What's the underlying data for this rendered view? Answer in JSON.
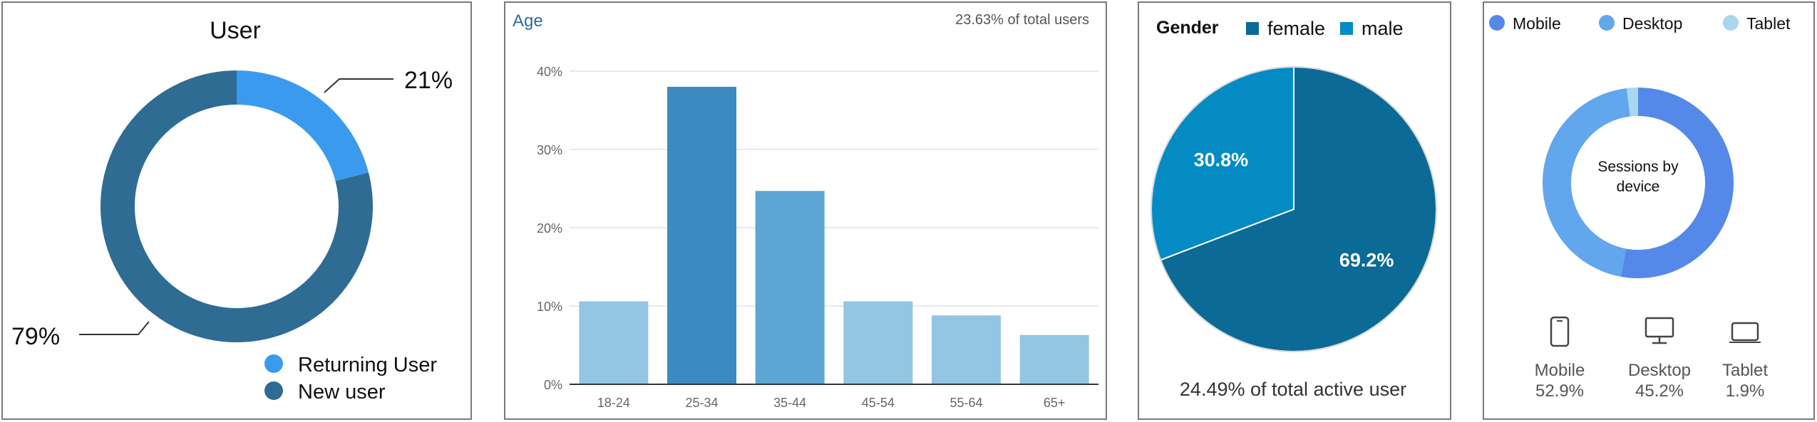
{
  "chart_data": [
    {
      "type": "pie",
      "variant": "donut",
      "title": "User",
      "slices": [
        {
          "label": "Returning  User",
          "value": 21,
          "display": "21%",
          "color": "#3a9bee"
        },
        {
          "label": "New user",
          "value": 79,
          "display": "79%",
          "color": "#2e6c94"
        }
      ],
      "legend_position": "bottom-right"
    },
    {
      "type": "bar",
      "title": "Age",
      "subtitle": "23.63% of total users",
      "categories": [
        "18-24",
        "25-34",
        "35-44",
        "45-54",
        "55-64",
        "65+"
      ],
      "values": [
        10.6,
        38,
        24.7,
        10.6,
        8.8,
        6.3
      ],
      "colors": [
        "#93c6e3",
        "#3b8bc2",
        "#5ca6d3",
        "#93c6e3",
        "#93c6e3",
        "#93c6e3"
      ],
      "yticks": [
        "0%",
        "10%",
        "20%",
        "30%",
        "40%"
      ],
      "ylim": [
        0,
        40
      ],
      "grid": true
    },
    {
      "type": "pie",
      "title": "Gender",
      "slices": [
        {
          "label": "female",
          "value": 69.2,
          "display": "69.2%",
          "color": "#0b6a96"
        },
        {
          "label": "male",
          "value": 30.8,
          "display": "30.8%",
          "color": "#048bc4"
        }
      ],
      "footer": "24.49% of total active user",
      "legend_position": "top"
    },
    {
      "type": "pie",
      "variant": "donut",
      "center_label": "Sessions by\ndevice",
      "slices": [
        {
          "label": "Mobile",
          "value": 52.9,
          "display": "52.9%",
          "color": "#5489ea",
          "icon": "phone-icon"
        },
        {
          "label": "Desktop",
          "value": 45.2,
          "display": "45.2%",
          "color": "#62a6ee",
          "icon": "desktop-icon"
        },
        {
          "label": "Tablet",
          "value": 1.9,
          "display": "1.9%",
          "color": "#aad6ee",
          "icon": "tablet-icon"
        }
      ],
      "legend_position": "top"
    }
  ]
}
